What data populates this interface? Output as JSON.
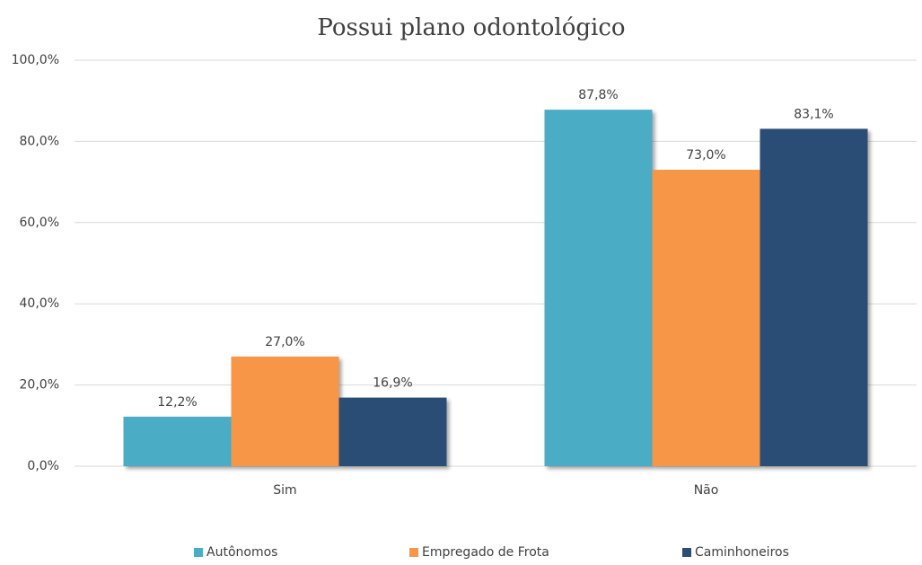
{
  "chart_data": {
    "type": "bar",
    "title": "Possui plano odontológico",
    "categories": [
      "Sim",
      "Não"
    ],
    "series": [
      {
        "name": "Autônomos",
        "color": "#4bacc6",
        "values": [
          12.2,
          87.8
        ],
        "value_labels": [
          "12,2%",
          "87,8%"
        ]
      },
      {
        "name": "Empregado de Frota",
        "color": "#f79646",
        "values": [
          27.0,
          73.0
        ],
        "value_labels": [
          "27,0%",
          "73,0%"
        ]
      },
      {
        "name": "Caminhoneiros",
        "color": "#2c4d75",
        "values": [
          16.9,
          83.1
        ],
        "value_labels": [
          "16,9%",
          "83,1%"
        ]
      }
    ],
    "ylim": [
      0,
      100
    ],
    "yticks": [
      {
        "value": 0,
        "label": "0,0%"
      },
      {
        "value": 20,
        "label": "20,0%"
      },
      {
        "value": 40,
        "label": "40,0%"
      },
      {
        "value": 60,
        "label": "60,0%"
      },
      {
        "value": 80,
        "label": "80,0%"
      },
      {
        "value": 100,
        "label": "100,0%"
      }
    ],
    "grid": true,
    "legend": "bottom"
  }
}
